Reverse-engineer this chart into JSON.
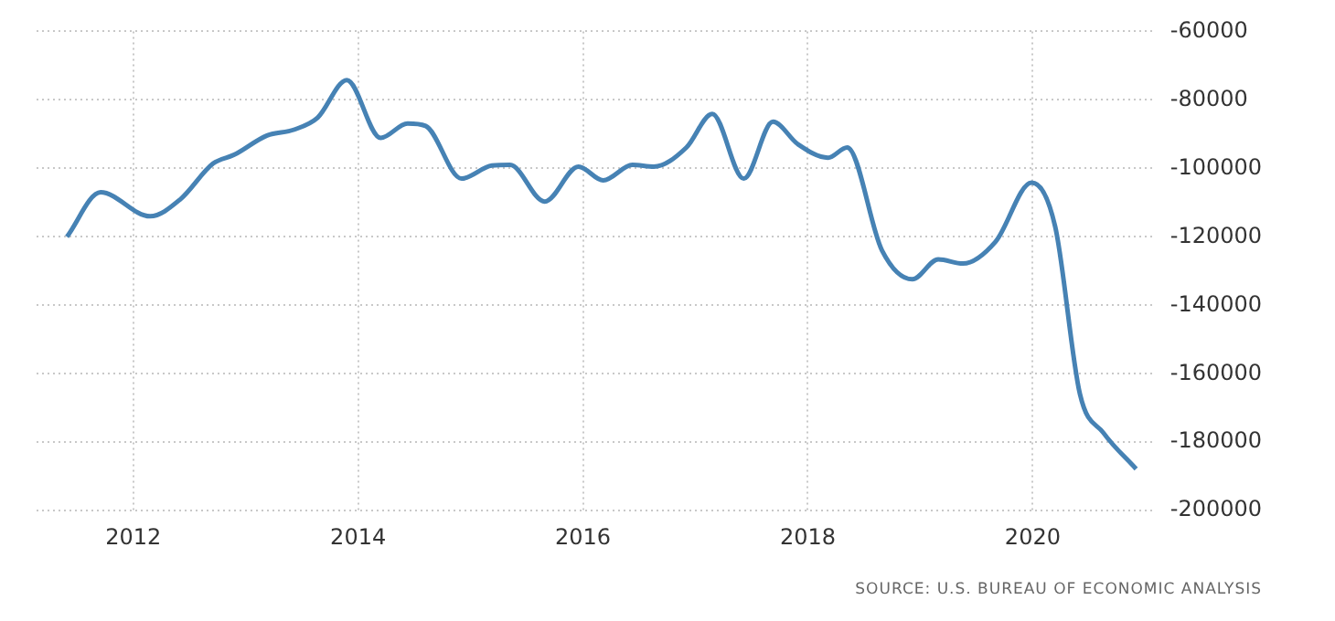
{
  "chart_data": {
    "type": "line",
    "x": [
      2011.41,
      2011.71,
      2012.15,
      2012.42,
      2012.71,
      2012.9,
      2013.19,
      2013.43,
      2013.64,
      2013.9,
      2014.2,
      2014.44,
      2014.6,
      2014.92,
      2015.19,
      2015.35,
      2015.66,
      2015.96,
      2016.18,
      2016.44,
      2016.63,
      2016.92,
      2017.15,
      2017.43,
      2017.69,
      2017.91,
      2018.18,
      2018.35,
      2018.66,
      2018.93,
      2019.16,
      2019.38,
      2019.67,
      2019.99,
      2020.2,
      2020.42,
      2020.63,
      2020.92
    ],
    "series": [
      {
        "color": "#4682b4",
        "values": [
          -120000,
          -107000,
          -114000,
          -109000,
          -98600,
          -96000,
          -90400,
          -88700,
          -85200,
          -74200,
          -91100,
          -86900,
          -87600,
          -103000,
          -99200,
          -99000,
          -109700,
          -99500,
          -103500,
          -99000,
          -99500,
          -93900,
          -84100,
          -103000,
          -86400,
          -92900,
          -96900,
          -93900,
          -124000,
          -132400,
          -126600,
          -127800,
          -121400,
          -104200,
          -117000,
          -165900,
          -177300,
          -187800
        ]
      }
    ],
    "xlim": [
      2011.14,
      2021.06
    ],
    "xticks": [
      2012,
      2014,
      2016,
      2018,
      2020
    ],
    "ylim": [
      -200000,
      -60000
    ],
    "yticks": [
      -200000,
      -180000,
      -160000,
      -140000,
      -120000,
      -100000,
      -80000,
      -60000
    ],
    "grid": true,
    "legend": false,
    "marker": "none",
    "line_style": "solid",
    "annotations": [
      "SOURCE: U.S. BUREAU OF ECONOMIC ANALYSIS"
    ]
  }
}
